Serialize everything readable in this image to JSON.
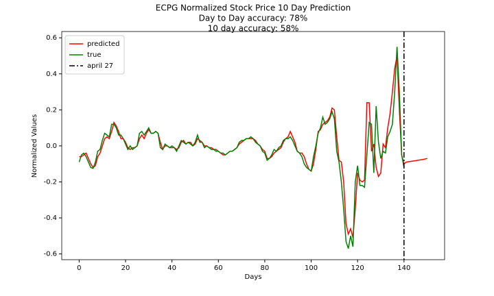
{
  "chart_data": {
    "type": "line",
    "title": "ECPG Normalized Stock Price 10 Day Prediction",
    "subtitle": [
      "Day to Day accuracy: 78%",
      "10 day accuracy: 58%"
    ],
    "x_label": "Days",
    "y_label": "Normalized Values",
    "x": [
      0,
      1,
      2,
      3,
      4,
      5,
      6,
      7,
      8,
      9,
      10,
      11,
      12,
      13,
      14,
      15,
      16,
      17,
      18,
      19,
      20,
      21,
      22,
      23,
      24,
      25,
      26,
      27,
      28,
      29,
      30,
      31,
      32,
      33,
      34,
      35,
      36,
      37,
      38,
      39,
      40,
      41,
      42,
      43,
      44,
      45,
      46,
      47,
      48,
      49,
      50,
      51,
      52,
      53,
      54,
      55,
      56,
      57,
      58,
      59,
      60,
      61,
      62,
      63,
      64,
      65,
      66,
      67,
      68,
      69,
      70,
      71,
      72,
      73,
      74,
      75,
      76,
      77,
      78,
      79,
      80,
      81,
      82,
      83,
      84,
      85,
      86,
      87,
      88,
      89,
      90,
      91,
      92,
      93,
      94,
      95,
      96,
      97,
      98,
      99,
      100,
      101,
      102,
      103,
      104,
      105,
      106,
      107,
      108,
      109,
      110,
      111,
      112,
      113,
      114,
      115,
      116,
      117,
      118,
      119,
      120,
      121,
      122,
      123,
      124,
      125,
      126,
      127,
      128,
      129,
      130,
      131,
      132,
      133,
      134,
      135,
      136,
      137,
      138,
      139,
      140,
      141,
      142,
      143,
      144,
      145,
      146,
      147,
      148,
      149,
      150
    ],
    "series": [
      {
        "name": "predicted",
        "color": "#ff0000",
        "values": [
          -0.06,
          -0.06,
          -0.05,
          -0.04,
          -0.07,
          -0.1,
          -0.12,
          -0.11,
          -0.06,
          -0.04,
          0.0,
          0.04,
          0.05,
          0.04,
          0.08,
          0.13,
          0.11,
          0.08,
          0.04,
          0.04,
          0.02,
          -0.01,
          -0.02,
          -0.01,
          -0.01,
          0.0,
          0.04,
          0.06,
          0.04,
          0.07,
          0.09,
          0.07,
          0.07,
          0.08,
          0.07,
          0.02,
          -0.02,
          0.0,
          0.0,
          -0.01,
          -0.01,
          -0.01,
          -0.02,
          -0.01,
          0.02,
          0.03,
          0.01,
          0.02,
          0.02,
          0.0,
          0.01,
          0.04,
          0.03,
          0.02,
          0.0,
          0.0,
          -0.01,
          -0.01,
          -0.02,
          -0.02,
          -0.03,
          -0.04,
          -0.05,
          -0.05,
          -0.04,
          -0.03,
          -0.03,
          -0.02,
          -0.01,
          0.01,
          0.02,
          0.03,
          0.04,
          0.04,
          0.04,
          0.04,
          0.03,
          0.01,
          0.0,
          -0.02,
          -0.03,
          -0.07,
          -0.07,
          -0.06,
          -0.04,
          -0.03,
          -0.02,
          -0.01,
          0.02,
          0.04,
          0.05,
          0.08,
          0.05,
          0.02,
          -0.03,
          -0.04,
          -0.04,
          -0.06,
          -0.1,
          -0.13,
          -0.14,
          -0.1,
          -0.02,
          0.08,
          0.09,
          0.12,
          0.13,
          0.14,
          0.16,
          0.21,
          0.2,
          0.05,
          -0.08,
          -0.09,
          -0.2,
          -0.43,
          -0.49,
          -0.46,
          -0.51,
          -0.35,
          -0.15,
          -0.19,
          -0.2,
          -0.19,
          0.24,
          0.24,
          -0.03,
          0.01,
          -0.12,
          -0.17,
          -0.15,
          0.01,
          -0.01,
          0.1,
          0.18,
          0.3,
          0.43,
          0.5,
          0.2,
          -0.05,
          -0.1,
          -0.09,
          -0.088,
          -0.086,
          -0.084,
          -0.082,
          -0.08,
          -0.078,
          -0.076,
          -0.073,
          -0.07
        ]
      },
      {
        "name": "true",
        "color": "#008000",
        "values": [
          -0.09,
          -0.05,
          -0.04,
          -0.06,
          -0.09,
          -0.12,
          -0.125,
          -0.09,
          -0.03,
          -0.02,
          0.03,
          0.07,
          0.06,
          0.05,
          0.12,
          0.12,
          0.1,
          0.06,
          0.06,
          0.04,
          0.01,
          -0.02,
          0.0,
          -0.02,
          -0.01,
          0.0,
          0.07,
          0.08,
          0.06,
          0.08,
          0.1,
          0.07,
          0.07,
          0.08,
          0.07,
          -0.01,
          -0.02,
          0.01,
          0.0,
          -0.01,
          0.0,
          -0.01,
          -0.03,
          0.0,
          0.03,
          0.02,
          0.01,
          0.02,
          0.01,
          0.0,
          0.02,
          0.06,
          0.02,
          0.02,
          -0.01,
          0.0,
          -0.01,
          -0.02,
          -0.02,
          -0.03,
          -0.03,
          -0.04,
          -0.04,
          -0.05,
          -0.04,
          -0.03,
          -0.03,
          -0.02,
          -0.01,
          0.02,
          0.03,
          0.03,
          0.04,
          0.04,
          0.05,
          0.04,
          0.02,
          0.01,
          0.0,
          -0.03,
          -0.04,
          -0.08,
          -0.07,
          -0.05,
          -0.02,
          -0.03,
          -0.01,
          0.0,
          0.03,
          0.04,
          0.04,
          0.05,
          0.03,
          0.0,
          -0.03,
          -0.04,
          -0.06,
          -0.1,
          -0.12,
          -0.13,
          -0.14,
          -0.06,
          0.0,
          0.07,
          0.1,
          0.16,
          0.12,
          0.13,
          0.15,
          0.19,
          0.15,
          -0.03,
          -0.09,
          -0.2,
          -0.35,
          -0.53,
          -0.57,
          -0.5,
          -0.56,
          -0.2,
          -0.11,
          -0.22,
          -0.22,
          -0.23,
          -0.05,
          0.13,
          0.12,
          -0.15,
          0.22,
          0.02,
          -0.07,
          -0.03,
          -0.04,
          0.05,
          0.08,
          0.12,
          0.3,
          0.55,
          0.3,
          -0.05,
          -0.12,
          null,
          null,
          null,
          null,
          null,
          null,
          null,
          null,
          null,
          null
        ]
      }
    ],
    "vlines": [
      {
        "name": "april 27",
        "color": "#000000",
        "x": 140
      }
    ],
    "xlim": [
      -7.5,
      157.5
    ],
    "ylim": [
      -0.632,
      0.635
    ],
    "xticks": [
      0,
      20,
      40,
      60,
      80,
      100,
      120,
      140
    ],
    "yticks": [
      -0.6,
      -0.4,
      -0.2,
      {
        "value": 0,
        "label": "0.0"
      },
      0.2,
      0.4,
      0.6
    ],
    "legend": "upper left"
  }
}
